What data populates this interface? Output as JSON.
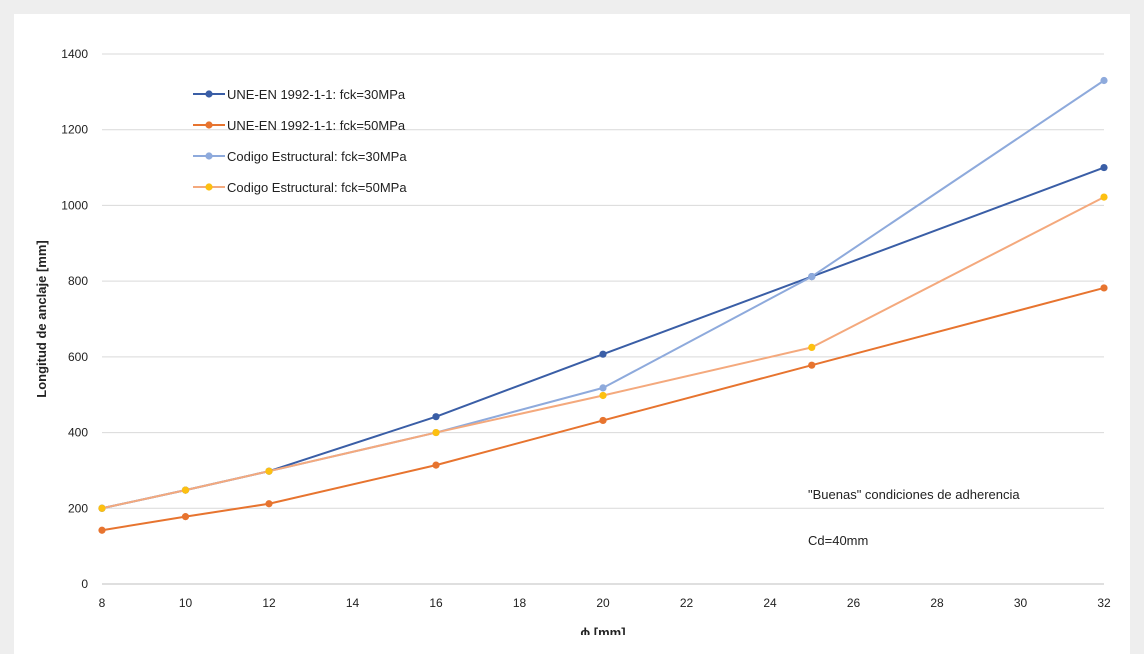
{
  "chart_data": {
    "type": "line",
    "title": "",
    "xlabel": "ϕ [mm]",
    "ylabel": "Longitud de anclaje [mm]",
    "xlim": [
      8,
      32
    ],
    "ylim": [
      0,
      1400
    ],
    "xticks": [
      8,
      10,
      12,
      14,
      16,
      18,
      20,
      22,
      24,
      26,
      28,
      30,
      32
    ],
    "yticks": [
      0,
      200,
      400,
      600,
      800,
      1000,
      1200,
      1400
    ],
    "grid": "horizontal",
    "legend_position": "top-left",
    "series": [
      {
        "name": "UNE-EN 1992-1-1: fck=30MPa",
        "color": "#3a5ea6",
        "x": [
          8,
          10,
          12,
          16,
          20,
          25,
          32
        ],
        "y": [
          200,
          248,
          298,
          442,
          607,
          812,
          1100
        ]
      },
      {
        "name": "UNE-EN 1992-1-1: fck=50MPa",
        "color": "#e7742f",
        "x": [
          8,
          10,
          12,
          16,
          20,
          25,
          32
        ],
        "y": [
          142,
          178,
          212,
          314,
          432,
          578,
          782
        ]
      },
      {
        "name": "Codigo Estructural: fck=30MPa",
        "color": "#8eaadc",
        "x": [
          8,
          10,
          12,
          16,
          20,
          25,
          32
        ],
        "y": [
          200,
          248,
          298,
          400,
          518,
          812,
          1330
        ]
      },
      {
        "name": "Codigo Estructural: fck=50MPa",
        "color": "#f4a97d",
        "marker_color": "#fdc010",
        "x": [
          8,
          10,
          12,
          16,
          20,
          25,
          32
        ],
        "y": [
          200,
          248,
          298,
          400,
          498,
          625,
          1022
        ]
      }
    ],
    "annotations": [
      "\"Buenas\" condiciones de adherencia",
      "Cd=40mm"
    ]
  }
}
